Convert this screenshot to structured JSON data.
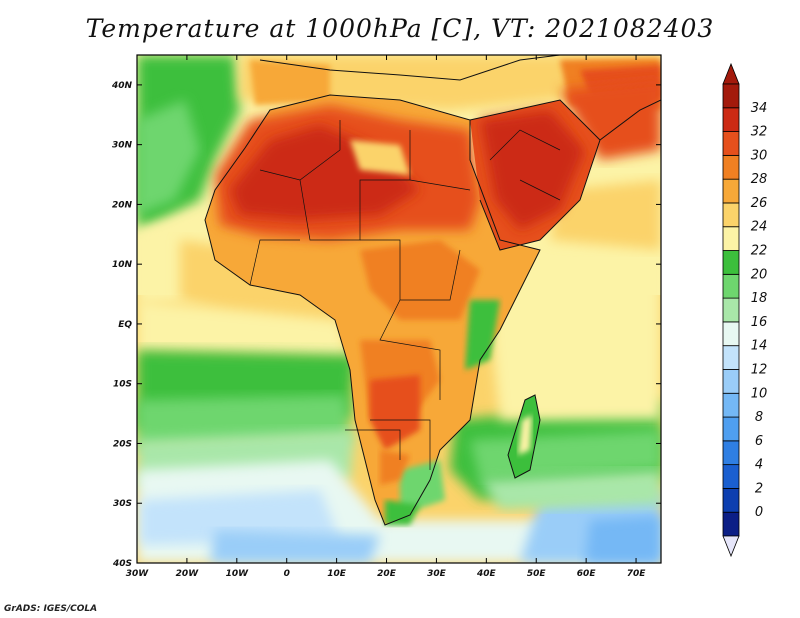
{
  "title": "Temperature at 1000hPa [C], VT: 2021082403",
  "credit": "GrADS: IGES/COLA",
  "map": {
    "lon_range": [
      -30,
      75
    ],
    "lat_range": [
      -40,
      45
    ],
    "lon_ticks": [
      {
        "lon": -30,
        "label": "30W"
      },
      {
        "lon": -20,
        "label": "20W"
      },
      {
        "lon": -10,
        "label": "10W"
      },
      {
        "lon": 0,
        "label": "0"
      },
      {
        "lon": 10,
        "label": "10E"
      },
      {
        "lon": 20,
        "label": "20E"
      },
      {
        "lon": 30,
        "label": "30E"
      },
      {
        "lon": 40,
        "label": "40E"
      },
      {
        "lon": 50,
        "label": "50E"
      },
      {
        "lon": 60,
        "label": "60E"
      },
      {
        "lon": 70,
        "label": "70E"
      }
    ],
    "lat_ticks": [
      {
        "lat": 40,
        "label": "40N"
      },
      {
        "lat": 30,
        "label": "30N"
      },
      {
        "lat": 20,
        "label": "20N"
      },
      {
        "lat": 10,
        "label": "10N"
      },
      {
        "lat": 0,
        "label": "EQ"
      },
      {
        "lat": -10,
        "label": "10S"
      },
      {
        "lat": -20,
        "label": "20S"
      },
      {
        "lat": -30,
        "label": "30S"
      },
      {
        "lat": -40,
        "label": "40S"
      }
    ]
  },
  "colorbar": {
    "levels": [
      "0",
      "2",
      "4",
      "6",
      "8",
      "10",
      "12",
      "14",
      "16",
      "18",
      "20",
      "22",
      "24",
      "26",
      "28",
      "30",
      "32",
      "34"
    ],
    "colors": [
      "#0c1f86",
      "#0d3fb0",
      "#1a5fd0",
      "#2f7fe3",
      "#4f9ff0",
      "#74b8f5",
      "#9acdf8",
      "#c3e3fb",
      "#e8f8f2",
      "#a9e7a9",
      "#6ed66e",
      "#3cbf3c",
      "#fcf3a6",
      "#fbd36a",
      "#f7a838",
      "#f08022",
      "#e6501c",
      "#cc2a14",
      "#a31a0c"
    ],
    "under_color": "#e6e6fa"
  }
}
